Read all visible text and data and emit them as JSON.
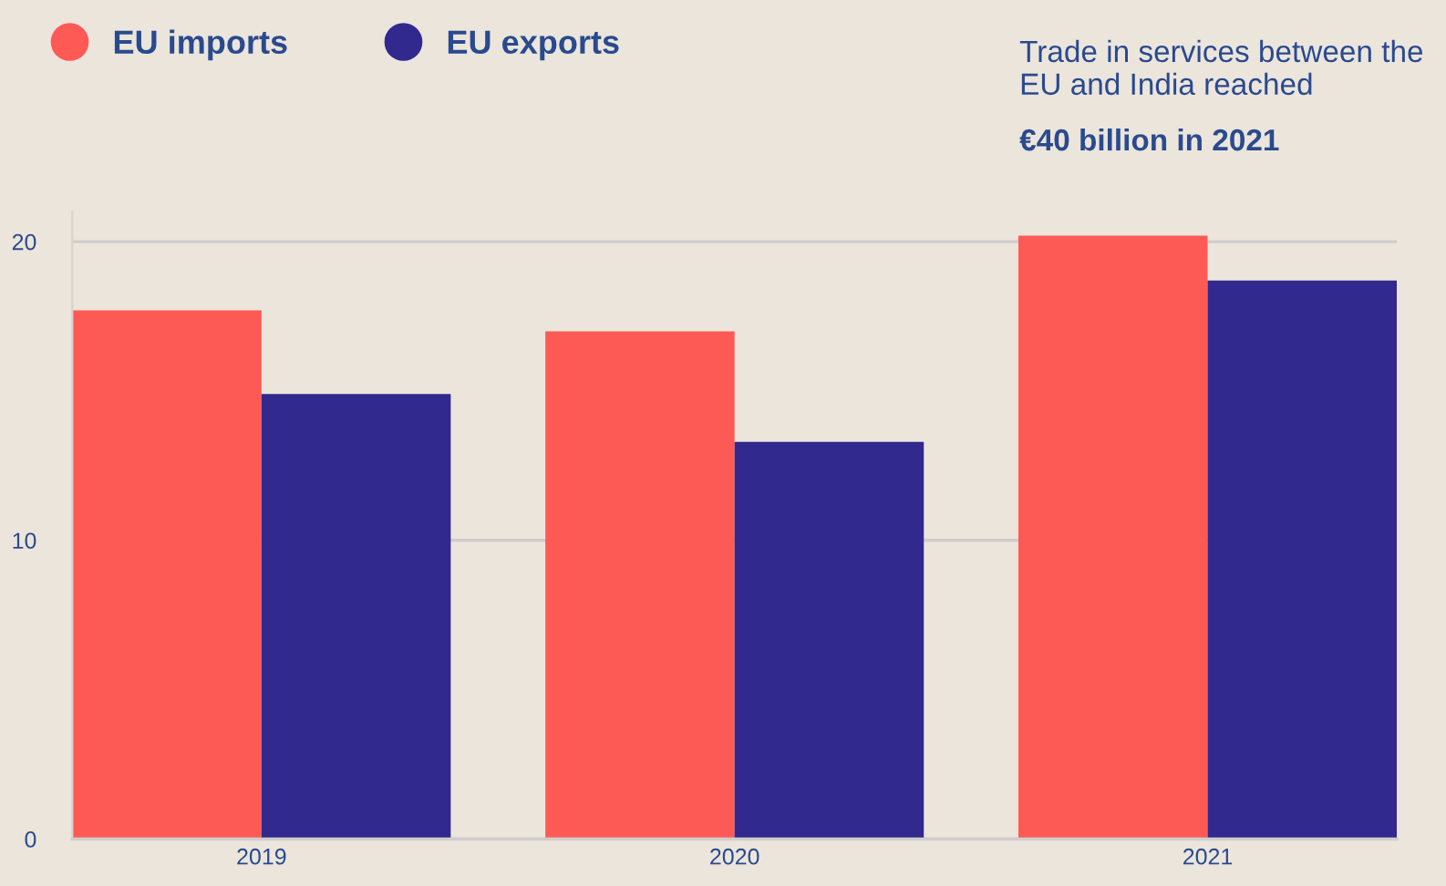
{
  "chart_data": {
    "type": "bar",
    "title": "Trade in services between the EU and India reached",
    "subtitle": "€40 billion in 2021",
    "categories": [
      "2019",
      "2020",
      "2021"
    ],
    "series": [
      {
        "name": "EU imports",
        "color": "#fe5a55",
        "values": [
          17.7,
          17.0,
          20.2
        ]
      },
      {
        "name": "EU exports",
        "color": "#31298e",
        "values": [
          14.9,
          13.3,
          18.7
        ]
      }
    ],
    "ylim": [
      0,
      21
    ],
    "yticks": [
      0,
      10,
      20
    ],
    "grid": "y",
    "legend": "top left"
  }
}
